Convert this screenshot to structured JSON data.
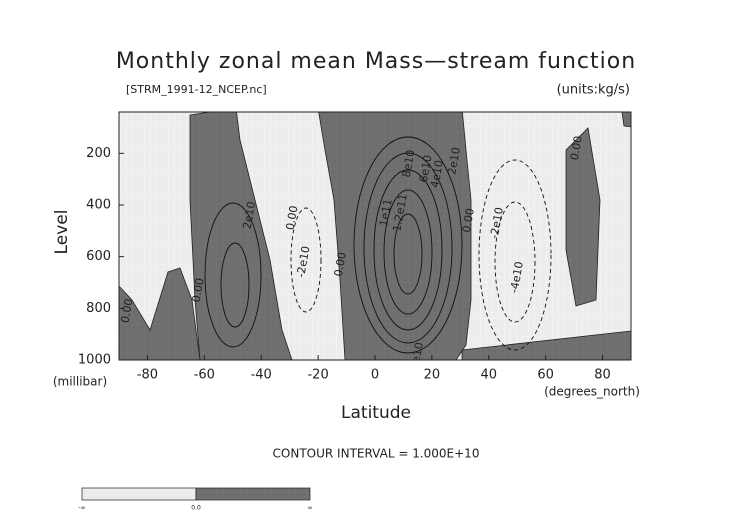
{
  "chart_data": {
    "type": "contour",
    "title": "Monthly zonal mean Mass—stream function",
    "subtitle": "[STRM_1991-12_NCEP.nc]",
    "units": "(units:kg/s)",
    "x_label": "Latitude",
    "x_unit": "(degrees_north)",
    "y_label": "Level",
    "y_unit": "(millibar)",
    "footer": "CONTOUR INTERVAL = 1.000E+10",
    "xlim": [
      -90,
      90
    ],
    "xticks": [
      -80,
      -60,
      -40,
      -20,
      0,
      20,
      40,
      60,
      80
    ],
    "ylim": [
      1000,
      40
    ],
    "yticks": [
      200,
      400,
      600,
      800,
      1000
    ],
    "annotations": [
      {
        "text": "0.00",
        "x": -62,
        "y": 730
      },
      {
        "text": "0.00",
        "x": -87,
        "y": 810
      },
      {
        "text": "2e10",
        "x": -44,
        "y": 440
      },
      {
        "text": "0.00",
        "x": -29,
        "y": 450
      },
      {
        "text": "-2e10",
        "x": -25,
        "y": 620
      },
      {
        "text": "0.00",
        "x": -12,
        "y": 630
      },
      {
        "text": "1e11",
        "x": 4,
        "y": 430
      },
      {
        "text": "1.2e11",
        "x": 9,
        "y": 430
      },
      {
        "text": "8e10",
        "x": 12,
        "y": 240
      },
      {
        "text": "6e10",
        "x": 18,
        "y": 260
      },
      {
        "text": "4e10",
        "x": 22,
        "y": 280
      },
      {
        "text": "2e10",
        "x": 28,
        "y": 230
      },
      {
        "text": "2e10",
        "x": 15,
        "y": 985
      },
      {
        "text": "0.00",
        "x": 33,
        "y": 460
      },
      {
        "text": "-2e10",
        "x": 43,
        "y": 470
      },
      {
        "text": "-4e10",
        "x": 50,
        "y": 680
      },
      {
        "text": "0.00",
        "x": 71,
        "y": 180
      }
    ],
    "colorbar_labels": [
      "-∞",
      "0.0",
      "∞"
    ]
  }
}
